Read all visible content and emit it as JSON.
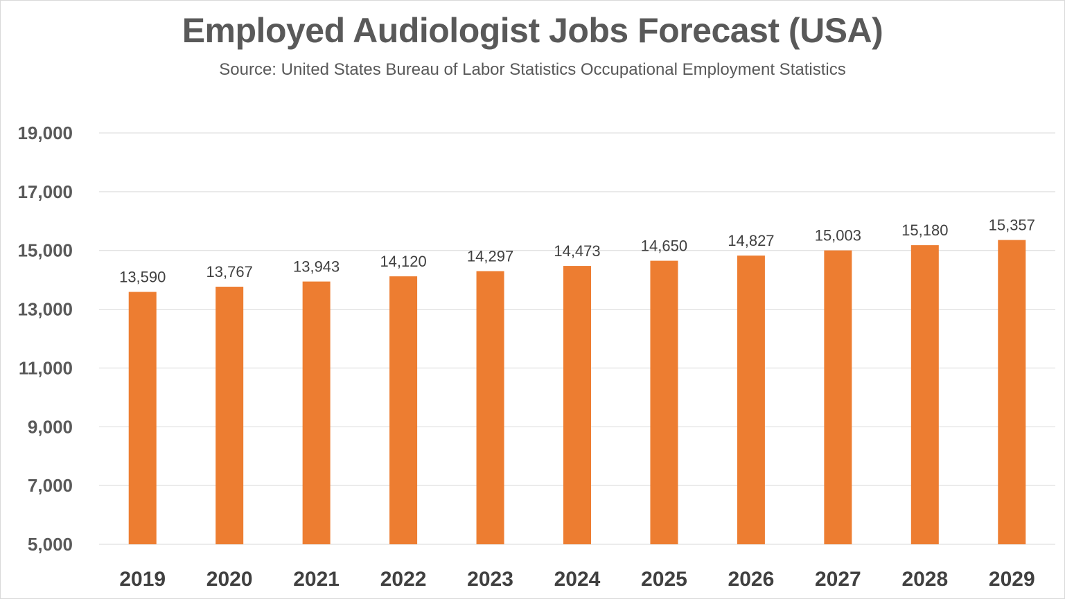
{
  "chart_data": {
    "type": "bar",
    "title": "Employed Audiologist Jobs Forecast (USA)",
    "subtitle": "Source: United States Bureau of Labor Statistics Occupational Employment Statistics",
    "xlabel": "",
    "ylabel": "",
    "categories": [
      "2019",
      "2020",
      "2021",
      "2022",
      "2023",
      "2024",
      "2025",
      "2026",
      "2027",
      "2028",
      "2029"
    ],
    "values": [
      13590,
      13767,
      13943,
      14120,
      14297,
      14473,
      14650,
      14827,
      15003,
      15180,
      15357
    ],
    "value_labels": [
      "13,590",
      "13,767",
      "13,943",
      "14,120",
      "14,297",
      "14,473",
      "14,650",
      "14,827",
      "15,003",
      "15,180",
      "15,357"
    ],
    "ylim": [
      5000,
      19000
    ],
    "yticks": [
      5000,
      7000,
      9000,
      11000,
      13000,
      15000,
      17000,
      19000
    ],
    "ytick_labels": [
      "5,000",
      "7,000",
      "9,000",
      "11,000",
      "13,000",
      "15,000",
      "17,000",
      "19,000"
    ],
    "grid": true,
    "legend": "none",
    "bar_color": "#ED7D31",
    "gridline_color": "#D9D9D9"
  }
}
